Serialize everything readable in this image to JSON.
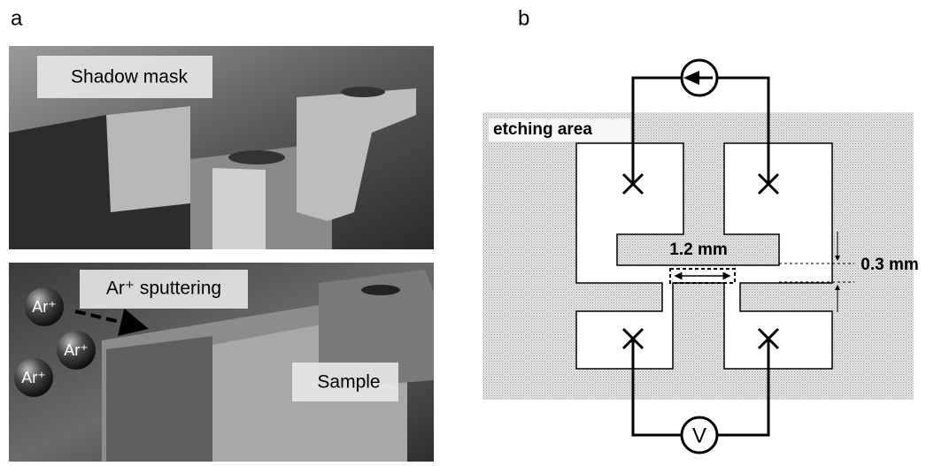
{
  "panel_a": {
    "label": "a",
    "top_photo": {
      "caption": "Shadow mask"
    },
    "bottom_photo": {
      "caption": "Ar⁺ sputtering",
      "sample_label": "Sample",
      "ions": [
        "Ar⁺",
        "Ar⁺",
        "Ar⁺"
      ]
    }
  },
  "panel_b": {
    "label": "b",
    "area_label": "etching area",
    "length_label": "1.2 mm",
    "width_label": "0.3 mm",
    "meter_label": "V"
  }
}
